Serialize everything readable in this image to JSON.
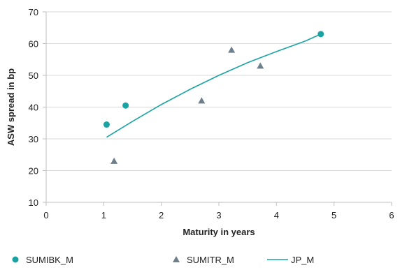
{
  "chart_data": {
    "type": "scatter",
    "xlabel": "Maturity in years",
    "ylabel": "ASW spread in bp",
    "xlim": [
      0,
      6
    ],
    "ylim": [
      10,
      70
    ],
    "xticks": [
      "0",
      "1",
      "2",
      "3",
      "4",
      "5",
      "6"
    ],
    "yticks": [
      "10",
      "20",
      "30",
      "40",
      "50",
      "60",
      "70"
    ],
    "grid": "horizontal",
    "legend": "bottom",
    "series": [
      {
        "name": "SUMIBK_M",
        "kind": "scatter",
        "marker": "circle",
        "color": "#1aa3a3",
        "points": [
          {
            "x": 1.05,
            "y": 34.5
          },
          {
            "x": 1.38,
            "y": 40.5
          },
          {
            "x": 4.77,
            "y": 63
          }
        ]
      },
      {
        "name": "SUMITR_M",
        "kind": "scatter",
        "marker": "triangle",
        "color": "#6d7f8c",
        "points": [
          {
            "x": 1.18,
            "y": 23
          },
          {
            "x": 2.7,
            "y": 42
          },
          {
            "x": 3.22,
            "y": 58
          },
          {
            "x": 3.72,
            "y": 53
          }
        ]
      },
      {
        "name": "JP_M",
        "kind": "line",
        "color": "#1aa3a3",
        "points": [
          {
            "x": 1.05,
            "y": 30.5
          },
          {
            "x": 1.5,
            "y": 35.5
          },
          {
            "x": 2.0,
            "y": 40.8
          },
          {
            "x": 2.5,
            "y": 45.6
          },
          {
            "x": 3.0,
            "y": 50
          },
          {
            "x": 3.5,
            "y": 54
          },
          {
            "x": 4.0,
            "y": 57.5
          },
          {
            "x": 4.5,
            "y": 60.8
          },
          {
            "x": 4.77,
            "y": 63
          }
        ]
      }
    ]
  }
}
